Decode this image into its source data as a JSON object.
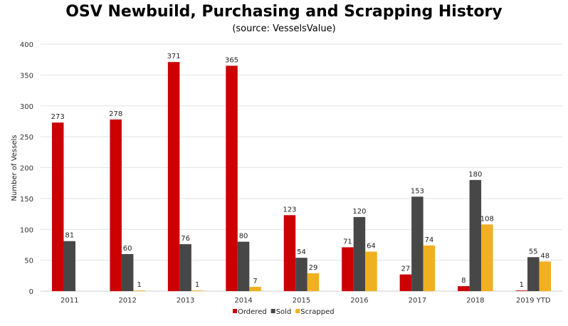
{
  "chart_data": {
    "type": "bar",
    "title": "OSV Newbuild, Purchasing and Scrapping History",
    "subtitle": "(source: VesselsValue)",
    "xlabel": "",
    "ylabel": "Number of Vessels",
    "ylim": [
      0,
      400
    ],
    "yticks": [
      0,
      50,
      100,
      150,
      200,
      250,
      300,
      350,
      400
    ],
    "grid": "horizontal",
    "legend_position": "bottom",
    "categories": [
      "2011",
      "2012",
      "2013",
      "2014",
      "2015",
      "2016",
      "2017",
      "2018",
      "2019 YTD"
    ],
    "series": [
      {
        "name": "Ordered",
        "color": "#cc0000",
        "values": [
          273,
          278,
          371,
          365,
          123,
          71,
          27,
          8,
          1
        ]
      },
      {
        "name": "Sold",
        "color": "#474747",
        "values": [
          81,
          60,
          76,
          80,
          54,
          120,
          153,
          180,
          55
        ]
      },
      {
        "name": "Scrapped",
        "color": "#f0b020",
        "values": [
          null,
          1,
          1,
          7,
          29,
          64,
          74,
          108,
          48
        ]
      }
    ]
  }
}
